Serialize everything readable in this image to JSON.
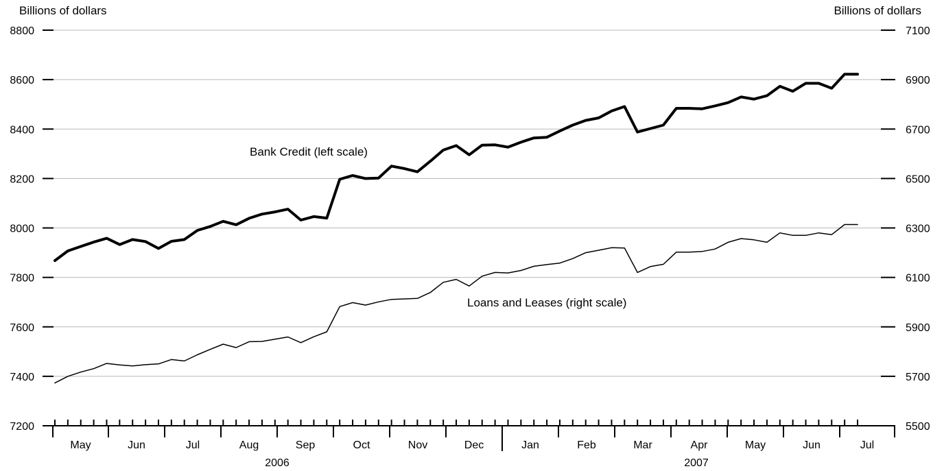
{
  "chart_data": {
    "type": "line",
    "left_axis": {
      "label": "Billions of dollars",
      "ylim": [
        7200,
        8800
      ],
      "ticks": [
        "8800",
        "8600",
        "8400",
        "8200",
        "8000",
        "7800",
        "7600",
        "7400",
        "7200"
      ]
    },
    "right_axis": {
      "label": "Billions of dollars",
      "ylim": [
        5500,
        7100
      ],
      "ticks": [
        "7100",
        "6900",
        "6700",
        "6500",
        "6300",
        "6100",
        "5900",
        "5700",
        "5500"
      ]
    },
    "x_axis": {
      "months": [
        "May",
        "Jun",
        "Jul",
        "Aug",
        "Sep",
        "Oct",
        "Nov",
        "Dec",
        "Jan",
        "Feb",
        "Mar",
        "Apr",
        "May",
        "Jun",
        "Jul"
      ],
      "years": [
        "2006",
        "2007"
      ]
    },
    "grid": "horizontal",
    "series": [
      {
        "name": "Bank Credit (left scale)",
        "axis": "left",
        "style": "heavy",
        "values": [
          7868,
          7907,
          7925,
          7943,
          7958,
          7933,
          7953,
          7945,
          7917,
          7946,
          7953,
          7990,
          8006,
          8027,
          8013,
          8039,
          8056,
          8065,
          8076,
          8032,
          8046,
          8040,
          8197,
          8212,
          8200,
          8202,
          8250,
          8240,
          8227,
          8270,
          8315,
          8333,
          8296,
          8335,
          8336,
          8327,
          8347,
          8364,
          8367,
          8392,
          8416,
          8435,
          8445,
          8473,
          8491,
          8388,
          8402,
          8416,
          8484,
          8484,
          8482,
          8494,
          8507,
          8530,
          8521,
          8535,
          8573,
          8553,
          8585,
          8585,
          8565,
          8622,
          8622
        ]
      },
      {
        "name": "Loans and Leases (right scale)",
        "axis": "right",
        "style": "thin",
        "values": [
          5673,
          5700,
          5717,
          5731,
          5752,
          5746,
          5742,
          5747,
          5750,
          5768,
          5762,
          5787,
          5809,
          5830,
          5816,
          5840,
          5841,
          5850,
          5859,
          5836,
          5860,
          5880,
          5982,
          5998,
          5988,
          6001,
          6011,
          6013,
          6015,
          6039,
          6080,
          6092,
          6065,
          6105,
          6120,
          6118,
          6128,
          6145,
          6152,
          6158,
          6176,
          6200,
          6210,
          6220,
          6219,
          6120,
          6144,
          6153,
          6202,
          6202,
          6205,
          6215,
          6242,
          6257,
          6252,
          6242,
          6280,
          6270,
          6270,
          6280,
          6273,
          6314,
          6314
        ]
      }
    ]
  }
}
